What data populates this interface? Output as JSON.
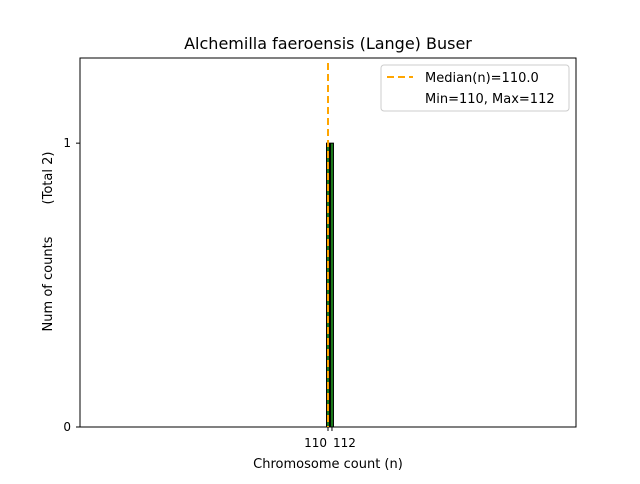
{
  "chart_data": {
    "type": "bar",
    "title": "Alchemilla faeroensis (Lange) Buser",
    "xlabel": "Chromosome count (n)",
    "ylabel": "Num of counts",
    "ylabel_right": "(Total 2)",
    "x": [
      110,
      112
    ],
    "values": [
      1,
      1
    ],
    "xticks": [
      "110",
      "112"
    ],
    "yticks": [
      "0",
      "1"
    ],
    "xlim": [
      -15,
      235
    ],
    "ylim": [
      0,
      1.3
    ],
    "median": 110.0,
    "legend": {
      "position": "top-right",
      "entries": [
        "Median(n)=110.0",
        "Min=110, Max=112"
      ]
    },
    "colors": {
      "bar": "#1a7a1a",
      "bar_edge": "#000000",
      "median": "#ffa500"
    }
  }
}
